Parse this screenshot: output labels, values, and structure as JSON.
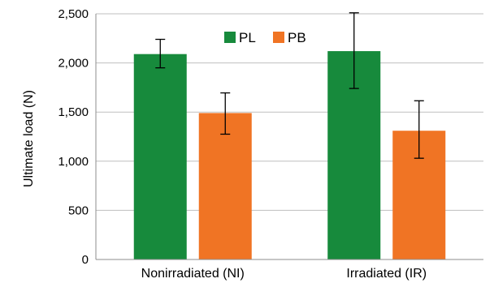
{
  "chart_data": {
    "type": "bar",
    "categories": [
      "Nonirradiated (NI)",
      "Irradiated (IR)"
    ],
    "series": [
      {
        "name": "PL",
        "values": [
          2090,
          2120
        ],
        "error_low": [
          1950,
          1740
        ],
        "error_high": [
          2240,
          2510
        ],
        "color": "#178a3c"
      },
      {
        "name": "PB",
        "values": [
          1490,
          1310
        ],
        "error_low": [
          1275,
          1030
        ],
        "error_high": [
          1695,
          1615
        ],
        "color": "#f07424"
      }
    ],
    "ylabel": "Ultimate load (N)",
    "xlabel": "",
    "ylim": [
      0,
      2500
    ],
    "yticks": [
      0,
      500,
      1000,
      1500,
      2000,
      2500
    ],
    "ytick_labels": [
      "0",
      "500",
      "1,000",
      "1,500",
      "2,000",
      "2,500"
    ],
    "grid": true,
    "legend_position": "top-center"
  }
}
